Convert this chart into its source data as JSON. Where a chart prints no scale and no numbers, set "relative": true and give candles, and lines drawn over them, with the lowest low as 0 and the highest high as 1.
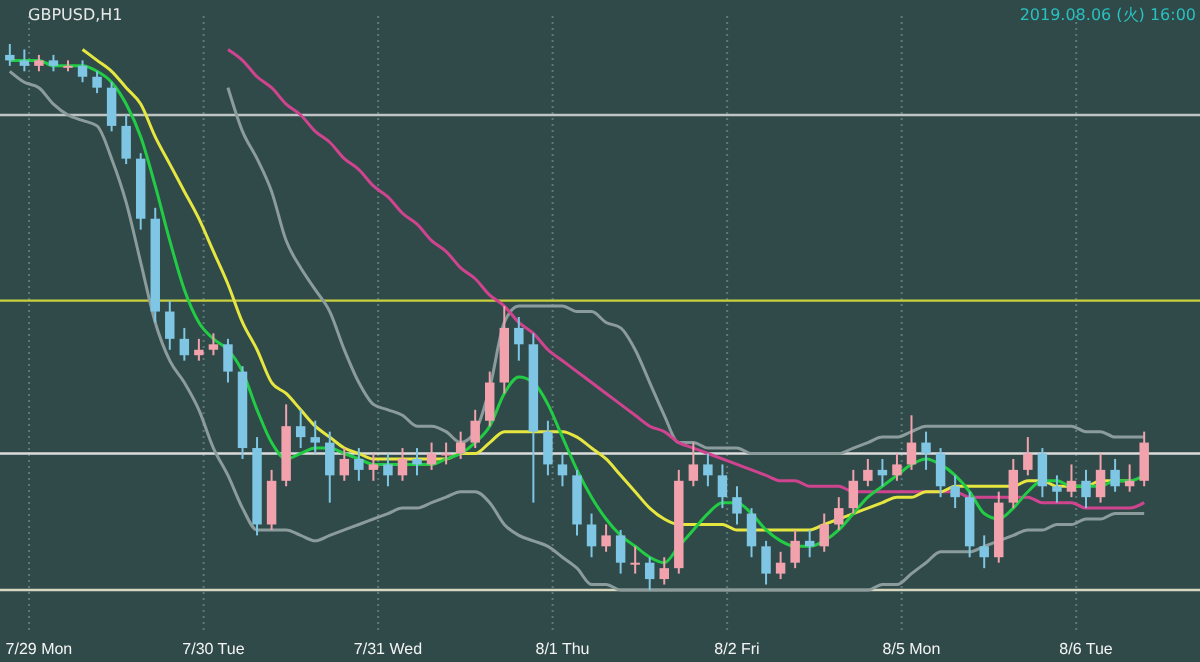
{
  "chart_data": {
    "type": "candlestick",
    "title": "GBPUSD,H1",
    "annotations": [
      "2019.08.06 (火) 16:00"
    ],
    "relative": true,
    "grid": "x",
    "categories": [
      null,
      null,
      "7/29 Mon",
      null,
      null,
      null,
      null,
      null,
      null,
      null,
      null,
      null,
      null,
      null,
      "7/30 Tue",
      null,
      null,
      null,
      null,
      null,
      null,
      null,
      null,
      null,
      null,
      null,
      "7/31 Wed",
      null,
      null,
      null,
      null,
      null,
      null,
      null,
      null,
      null,
      null,
      null,
      "8/1 Thu",
      null,
      null,
      null,
      null,
      null,
      null,
      null,
      null,
      null,
      null,
      null,
      "8/2 Fri",
      null,
      null,
      null,
      null,
      null,
      null,
      null,
      null,
      null,
      null,
      null,
      "8/5 Mon",
      null,
      null,
      null,
      null,
      null,
      null,
      null,
      null,
      null,
      null,
      null,
      "8/6 Tue",
      null,
      null,
      null,
      null
    ],
    "ohlc": [
      [
        0.98,
        1.0,
        0.96,
        0.97
      ],
      [
        0.97,
        0.99,
        0.95,
        0.96
      ],
      [
        0.96,
        0.98,
        0.95,
        0.97
      ],
      [
        0.97,
        0.98,
        0.95,
        0.96
      ],
      [
        0.96,
        0.97,
        0.95,
        0.96
      ],
      [
        0.96,
        0.97,
        0.93,
        0.94
      ],
      [
        0.94,
        0.95,
        0.91,
        0.92
      ],
      [
        0.92,
        0.93,
        0.84,
        0.85
      ],
      [
        0.85,
        0.87,
        0.78,
        0.79
      ],
      [
        0.79,
        0.8,
        0.66,
        0.68
      ],
      [
        0.68,
        0.7,
        0.49,
        0.51
      ],
      [
        0.51,
        0.53,
        0.44,
        0.46
      ],
      [
        0.46,
        0.48,
        0.42,
        0.43
      ],
      [
        0.43,
        0.46,
        0.42,
        0.44
      ],
      [
        0.44,
        0.47,
        0.43,
        0.45
      ],
      [
        0.45,
        0.46,
        0.38,
        0.4
      ],
      [
        0.4,
        0.41,
        0.24,
        0.26
      ],
      [
        0.26,
        0.28,
        0.1,
        0.12
      ],
      [
        0.12,
        0.22,
        0.11,
        0.2
      ],
      [
        0.2,
        0.34,
        0.19,
        0.3
      ],
      [
        0.3,
        0.33,
        0.26,
        0.28
      ],
      [
        0.28,
        0.31,
        0.25,
        0.27
      ],
      [
        0.27,
        0.29,
        0.16,
        0.21
      ],
      [
        0.21,
        0.26,
        0.2,
        0.24
      ],
      [
        0.24,
        0.26,
        0.2,
        0.22
      ],
      [
        0.22,
        0.25,
        0.2,
        0.23
      ],
      [
        0.23,
        0.25,
        0.19,
        0.21
      ],
      [
        0.21,
        0.26,
        0.2,
        0.24
      ],
      [
        0.24,
        0.26,
        0.21,
        0.23
      ],
      [
        0.23,
        0.27,
        0.22,
        0.25
      ],
      [
        0.25,
        0.27,
        0.23,
        0.25
      ],
      [
        0.25,
        0.29,
        0.24,
        0.27
      ],
      [
        0.27,
        0.33,
        0.26,
        0.31
      ],
      [
        0.31,
        0.4,
        0.3,
        0.38
      ],
      [
        0.38,
        0.52,
        0.36,
        0.48
      ],
      [
        0.48,
        0.5,
        0.42,
        0.45
      ],
      [
        0.45,
        0.47,
        0.16,
        0.29
      ],
      [
        0.29,
        0.31,
        0.21,
        0.23
      ],
      [
        0.23,
        0.25,
        0.19,
        0.21
      ],
      [
        0.21,
        0.22,
        0.1,
        0.12
      ],
      [
        0.12,
        0.14,
        0.06,
        0.08
      ],
      [
        0.08,
        0.12,
        0.07,
        0.1
      ],
      [
        0.1,
        0.11,
        0.03,
        0.05
      ],
      [
        0.05,
        0.08,
        0.03,
        0.05
      ],
      [
        0.05,
        0.06,
        0.0,
        0.02
      ],
      [
        0.02,
        0.06,
        0.01,
        0.04
      ],
      [
        0.04,
        0.22,
        0.03,
        0.2
      ],
      [
        0.2,
        0.27,
        0.19,
        0.23
      ],
      [
        0.23,
        0.25,
        0.19,
        0.21
      ],
      [
        0.21,
        0.23,
        0.15,
        0.17
      ],
      [
        0.17,
        0.19,
        0.12,
        0.14
      ],
      [
        0.14,
        0.15,
        0.06,
        0.08
      ],
      [
        0.08,
        0.09,
        0.01,
        0.03
      ],
      [
        0.03,
        0.07,
        0.02,
        0.05
      ],
      [
        0.05,
        0.11,
        0.04,
        0.09
      ],
      [
        0.09,
        0.11,
        0.06,
        0.08
      ],
      [
        0.08,
        0.14,
        0.07,
        0.12
      ],
      [
        0.12,
        0.17,
        0.11,
        0.15
      ],
      [
        0.15,
        0.22,
        0.14,
        0.2
      ],
      [
        0.2,
        0.24,
        0.19,
        0.22
      ],
      [
        0.22,
        0.24,
        0.19,
        0.21
      ],
      [
        0.21,
        0.25,
        0.2,
        0.23
      ],
      [
        0.23,
        0.32,
        0.22,
        0.27
      ],
      [
        0.27,
        0.29,
        0.22,
        0.25
      ],
      [
        0.25,
        0.26,
        0.17,
        0.19
      ],
      [
        0.19,
        0.21,
        0.15,
        0.17
      ],
      [
        0.17,
        0.18,
        0.06,
        0.08
      ],
      [
        0.08,
        0.1,
        0.04,
        0.06
      ],
      [
        0.06,
        0.18,
        0.05,
        0.16
      ],
      [
        0.16,
        0.24,
        0.15,
        0.22
      ],
      [
        0.22,
        0.28,
        0.21,
        0.25
      ],
      [
        0.25,
        0.26,
        0.17,
        0.19
      ],
      [
        0.19,
        0.21,
        0.16,
        0.18
      ],
      [
        0.18,
        0.23,
        0.17,
        0.2
      ],
      [
        0.2,
        0.22,
        0.15,
        0.17
      ],
      [
        0.17,
        0.25,
        0.16,
        0.22
      ],
      [
        0.22,
        0.24,
        0.18,
        0.19
      ],
      [
        0.19,
        0.23,
        0.18,
        0.2
      ],
      [
        0.2,
        0.29,
        0.19,
        0.27
      ]
    ],
    "series": [
      {
        "type": "line",
        "color": "#8c9c9c",
        "values": [
          null,
          null,
          null,
          null,
          null,
          null,
          null,
          null,
          null,
          null,
          null,
          null,
          null,
          null,
          null,
          0.92,
          0.84,
          0.79,
          0.73,
          0.64,
          0.59,
          0.55,
          0.51,
          0.44,
          0.38,
          0.34,
          0.33,
          0.32,
          0.3,
          0.3,
          0.29,
          0.27,
          0.29,
          0.37,
          0.49,
          0.52,
          0.52,
          0.52,
          0.52,
          0.51,
          0.51,
          0.49,
          0.48,
          0.44,
          0.38,
          0.32,
          0.27,
          0.27,
          0.26,
          0.26,
          0.26,
          0.25,
          0.25,
          0.25,
          0.25,
          0.25,
          0.25,
          0.25,
          0.26,
          0.27,
          0.28,
          0.28,
          0.29,
          0.3,
          0.3,
          0.3,
          0.3,
          0.3,
          0.3,
          0.3,
          0.3,
          0.3,
          0.3,
          0.3,
          0.29,
          0.29,
          0.28,
          0.28,
          0.28
        ]
      },
      {
        "type": "line",
        "color": "#8c9c9c",
        "values": [
          0.95,
          0.93,
          0.92,
          0.89,
          0.87,
          0.86,
          0.85,
          0.79,
          0.71,
          0.6,
          0.49,
          0.42,
          0.38,
          0.33,
          0.26,
          0.21,
          0.15,
          0.11,
          0.11,
          0.11,
          0.1,
          0.09,
          0.1,
          0.11,
          0.12,
          0.13,
          0.14,
          0.15,
          0.15,
          0.16,
          0.17,
          0.18,
          0.18,
          0.16,
          0.12,
          0.1,
          0.09,
          0.08,
          0.06,
          0.04,
          0.01,
          0.01,
          0.0,
          0.0,
          0.0,
          0.0,
          0.0,
          0.0,
          0.0,
          0.0,
          0.0,
          0.0,
          0.0,
          0.0,
          0.0,
          0.0,
          0.0,
          0.0,
          0.0,
          0.0,
          0.01,
          0.01,
          0.03,
          0.05,
          0.07,
          0.07,
          0.07,
          0.08,
          0.09,
          0.1,
          0.11,
          0.11,
          0.12,
          0.12,
          0.13,
          0.13,
          0.14,
          0.14,
          0.14
        ]
      },
      {
        "type": "line",
        "color": "#d0448f",
        "values": [
          null,
          null,
          null,
          null,
          null,
          null,
          null,
          null,
          null,
          null,
          null,
          null,
          null,
          null,
          null,
          0.99,
          0.97,
          0.94,
          0.92,
          0.89,
          0.87,
          0.84,
          0.82,
          0.79,
          0.77,
          0.74,
          0.72,
          0.69,
          0.67,
          0.64,
          0.62,
          0.59,
          0.57,
          0.54,
          0.52,
          0.49,
          0.47,
          0.44,
          0.42,
          0.4,
          0.38,
          0.36,
          0.34,
          0.32,
          0.3,
          0.29,
          0.27,
          0.26,
          0.25,
          0.24,
          0.23,
          0.22,
          0.21,
          0.2,
          0.2,
          0.19,
          0.19,
          0.19,
          0.18,
          0.18,
          0.18,
          0.18,
          0.18,
          0.18,
          0.18,
          0.18,
          0.17,
          0.17,
          0.17,
          0.17,
          0.17,
          0.16,
          0.16,
          0.16,
          0.15,
          0.15,
          0.15,
          0.15,
          0.16
        ]
      },
      {
        "type": "line",
        "color": "#e6e640",
        "values": [
          null,
          null,
          null,
          null,
          null,
          0.99,
          0.97,
          0.95,
          0.92,
          0.89,
          0.83,
          0.78,
          0.73,
          0.68,
          0.62,
          0.56,
          0.49,
          0.44,
          0.38,
          0.36,
          0.33,
          0.3,
          0.28,
          0.26,
          0.25,
          0.24,
          0.24,
          0.24,
          0.24,
          0.24,
          0.24,
          0.25,
          0.25,
          0.27,
          0.29,
          0.29,
          0.29,
          0.29,
          0.29,
          0.28,
          0.26,
          0.24,
          0.21,
          0.18,
          0.15,
          0.13,
          0.12,
          0.12,
          0.12,
          0.12,
          0.11,
          0.11,
          0.11,
          0.11,
          0.11,
          0.11,
          0.12,
          0.13,
          0.14,
          0.15,
          0.16,
          0.17,
          0.17,
          0.18,
          0.18,
          0.19,
          0.19,
          0.19,
          0.19,
          0.19,
          0.2,
          0.2,
          0.19,
          0.19,
          0.19,
          0.2,
          0.2,
          0.2,
          null
        ]
      },
      {
        "type": "line",
        "color": "#22cc44",
        "values": [
          0.97,
          0.97,
          0.97,
          0.96,
          0.96,
          0.96,
          0.95,
          0.93,
          0.89,
          0.83,
          0.74,
          0.64,
          0.55,
          0.49,
          0.46,
          0.44,
          0.4,
          0.33,
          0.27,
          0.24,
          0.25,
          0.26,
          0.26,
          0.25,
          0.24,
          0.23,
          0.23,
          0.23,
          0.23,
          0.23,
          0.24,
          0.25,
          0.27,
          0.3,
          0.36,
          0.39,
          0.38,
          0.34,
          0.28,
          0.22,
          0.17,
          0.13,
          0.1,
          0.08,
          0.06,
          0.05,
          0.08,
          0.11,
          0.14,
          0.16,
          0.16,
          0.14,
          0.11,
          0.09,
          0.08,
          0.08,
          0.09,
          0.11,
          0.14,
          0.17,
          0.19,
          0.21,
          0.23,
          0.24,
          0.23,
          0.21,
          0.18,
          0.14,
          0.13,
          0.15,
          0.18,
          0.2,
          0.2,
          0.19,
          0.19,
          0.19,
          0.2,
          0.2,
          0.21
        ]
      }
    ],
    "ref_lines": [
      {
        "axis": "y",
        "value": 0.87,
        "color": "#bfc4c4"
      },
      {
        "axis": "y",
        "value": 0.53,
        "color": "#c8d040"
      },
      {
        "axis": "y",
        "value": 0.25,
        "color": "#dcdcdc"
      },
      {
        "axis": "y",
        "value": 0.0,
        "color": "#d8d8c0"
      }
    ]
  }
}
